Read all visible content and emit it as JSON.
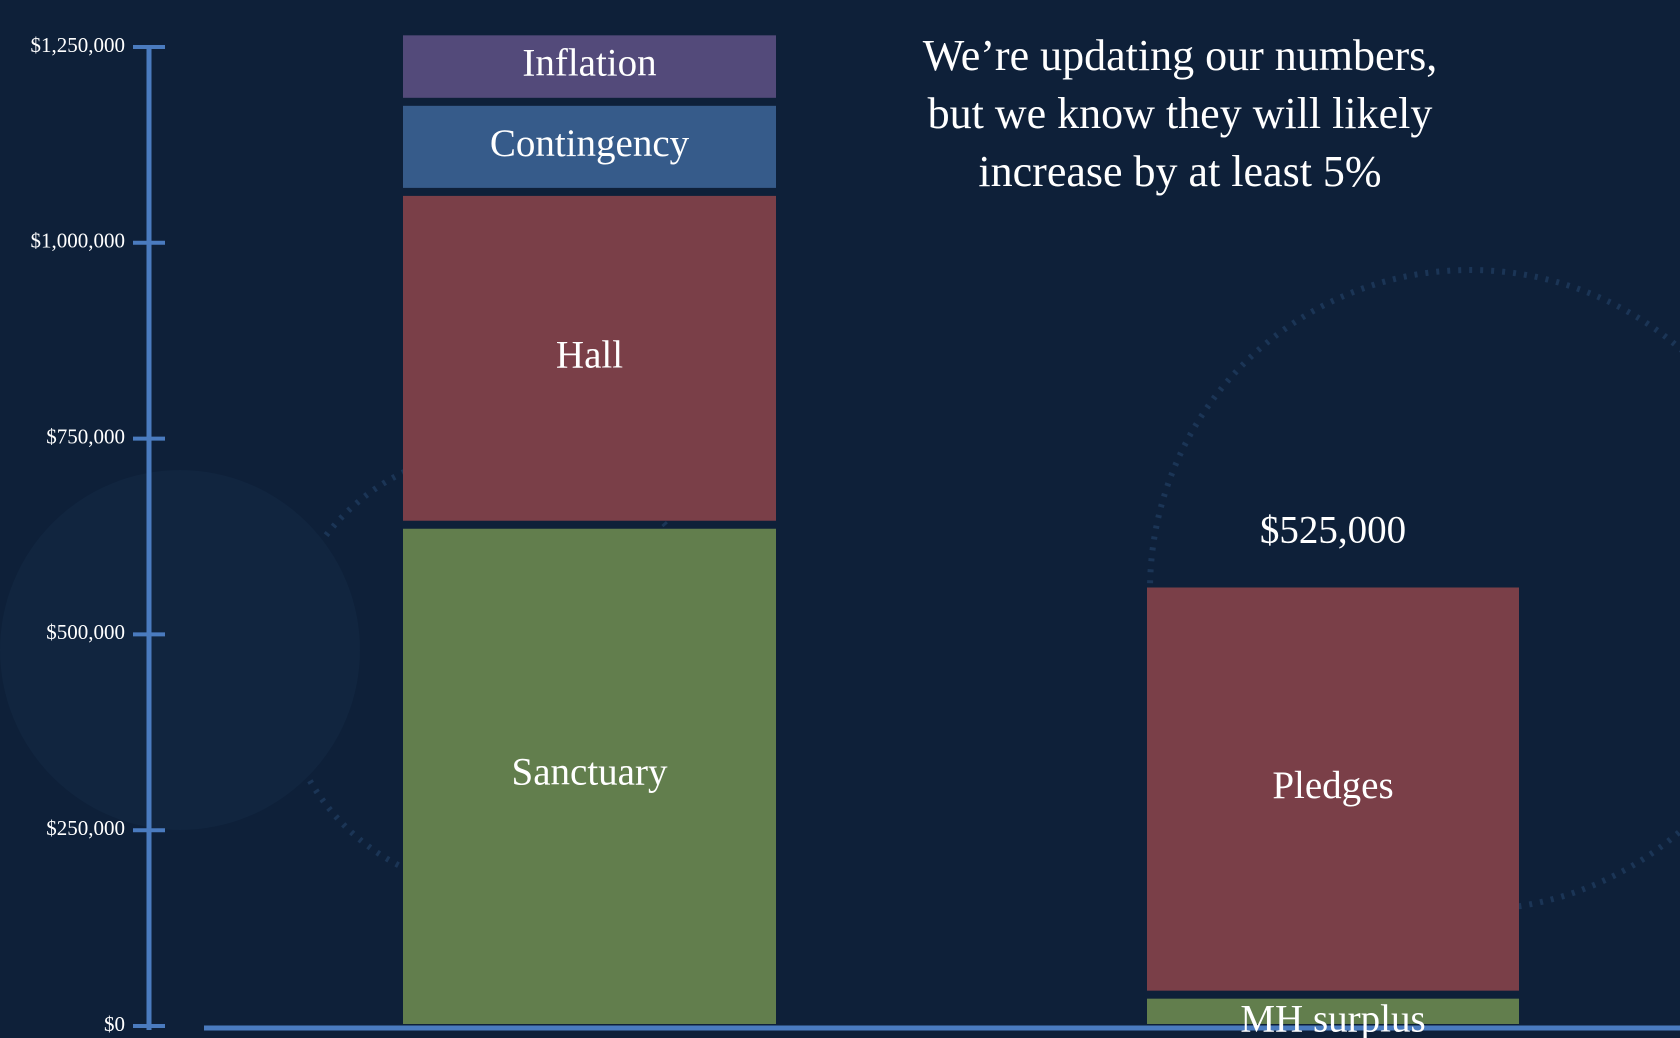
{
  "chart_data": {
    "type": "bar",
    "stacked": true,
    "categories": [
      null,
      null
    ],
    "series": [
      {
        "name": "Sanctuary",
        "color": "#627e4d",
        "values": [
          640000,
          null
        ]
      },
      {
        "name": "Hall",
        "color": "#7a3f48",
        "values": [
          425000,
          null
        ]
      },
      {
        "name": "Contingency",
        "color": "#365b8a",
        "values": [
          115000,
          null
        ]
      },
      {
        "name": "Inflation",
        "color": "#534a7a",
        "values": [
          90000,
          null
        ]
      },
      {
        "name": "MH surplus",
        "color": "#627e4d",
        "values": [
          null,
          40000
        ]
      },
      {
        "name": "Pledges",
        "color": "#7a3f48",
        "values": [
          null,
          525000
        ],
        "value_labels": [
          null,
          "$525,000"
        ]
      }
    ],
    "ylim": [
      0,
      1250000
    ],
    "yticks": [
      {
        "value": 0,
        "label": "$0"
      },
      {
        "value": 250000,
        "label": "$250,000"
      },
      {
        "value": 500000,
        "label": "$500,000"
      },
      {
        "value": 750000,
        "label": "$750,000"
      },
      {
        "value": 1000000,
        "label": "$1,000,000"
      },
      {
        "value": 1250000,
        "label": "$1,250,000"
      }
    ],
    "annotation": [
      "We’re updating our numbers,",
      "but we know they will likely",
      "increase by at least 5%"
    ],
    "axis_color": "#4a7bbf"
  }
}
